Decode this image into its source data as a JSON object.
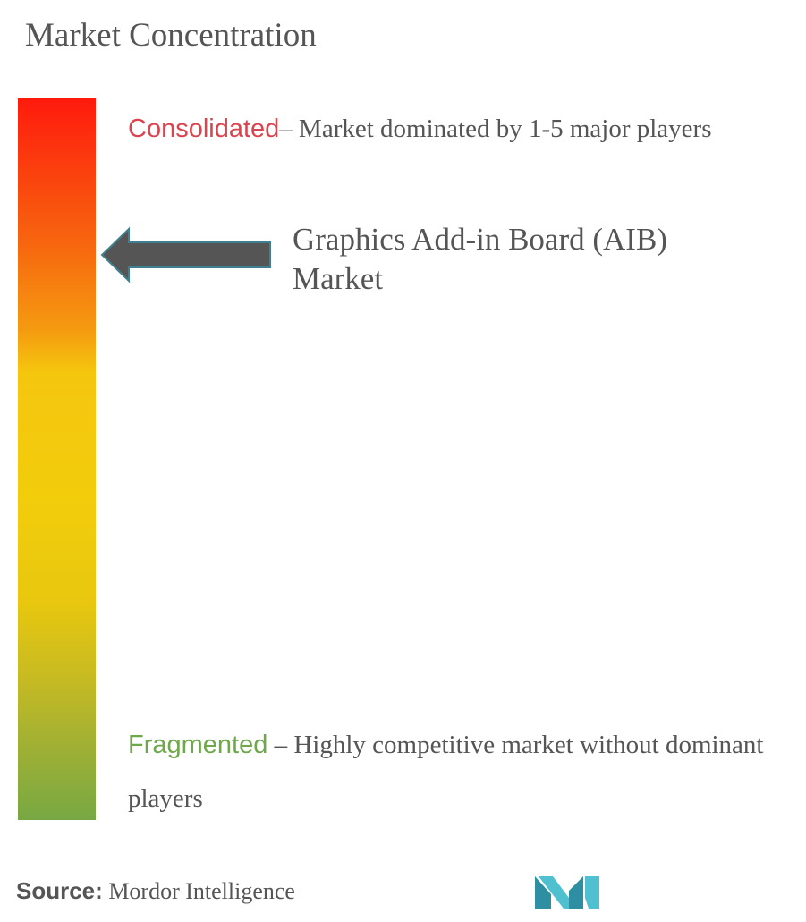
{
  "title": "Market Concentration",
  "scale": {
    "top": {
      "keyword": "Consolidated",
      "description": "– Market dominated by 1-5 major players",
      "keyword_color": "#d9454f"
    },
    "bottom": {
      "keyword": "Fragmented",
      "description": " – Highly competitive market without dominant players",
      "keyword_color": "#6fa84b"
    },
    "gradient_colors": [
      "#ff1a0d",
      "#f7650f",
      "#f59a10",
      "#f5c60e",
      "#f2cd0c",
      "#c8bb22",
      "#78a843"
    ]
  },
  "market": {
    "label": "Graphics Add-in Board (AIB) Market",
    "arrow_icon": "arrow-left-icon",
    "arrow_color": "#555555"
  },
  "source": {
    "label": "Source:",
    "value": " Mordor Intelligence"
  },
  "logo": {
    "icon": "mordor-intelligence-logo",
    "color": "#3aa8b8"
  }
}
